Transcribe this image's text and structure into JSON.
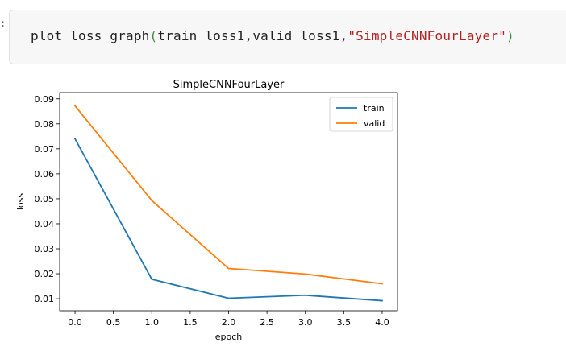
{
  "cell": {
    "prompt": ":",
    "code": {
      "function": "plot_loss_graph",
      "open_paren": "(",
      "args": "train_loss1,valid_loss1,",
      "string": "\"SimpleCNNFourLayer\"",
      "close_paren": ")"
    }
  },
  "chart_data": {
    "type": "line",
    "title": "SimpleCNNFourLayer",
    "xlabel": "epoch",
    "ylabel": "loss",
    "xlim": [
      -0.2,
      4.2
    ],
    "ylim": [
      0.0052,
      0.0925
    ],
    "xticks": [
      "0.0",
      "0.5",
      "1.0",
      "1.5",
      "2.0",
      "2.5",
      "3.0",
      "3.5",
      "4.0"
    ],
    "yticks": [
      "0.01",
      "0.02",
      "0.03",
      "0.04",
      "0.05",
      "0.06",
      "0.07",
      "0.08",
      "0.09"
    ],
    "x": [
      0,
      1,
      2,
      3,
      4
    ],
    "series": [
      {
        "name": "train",
        "color": "#1f77b4",
        "values": [
          0.074,
          0.0178,
          0.0102,
          0.0114,
          0.0092
        ]
      },
      {
        "name": "valid",
        "color": "#ff7f0e",
        "values": [
          0.0872,
          0.0493,
          0.0221,
          0.0199,
          0.016
        ]
      }
    ],
    "legend": "top-right",
    "grid": false
  }
}
